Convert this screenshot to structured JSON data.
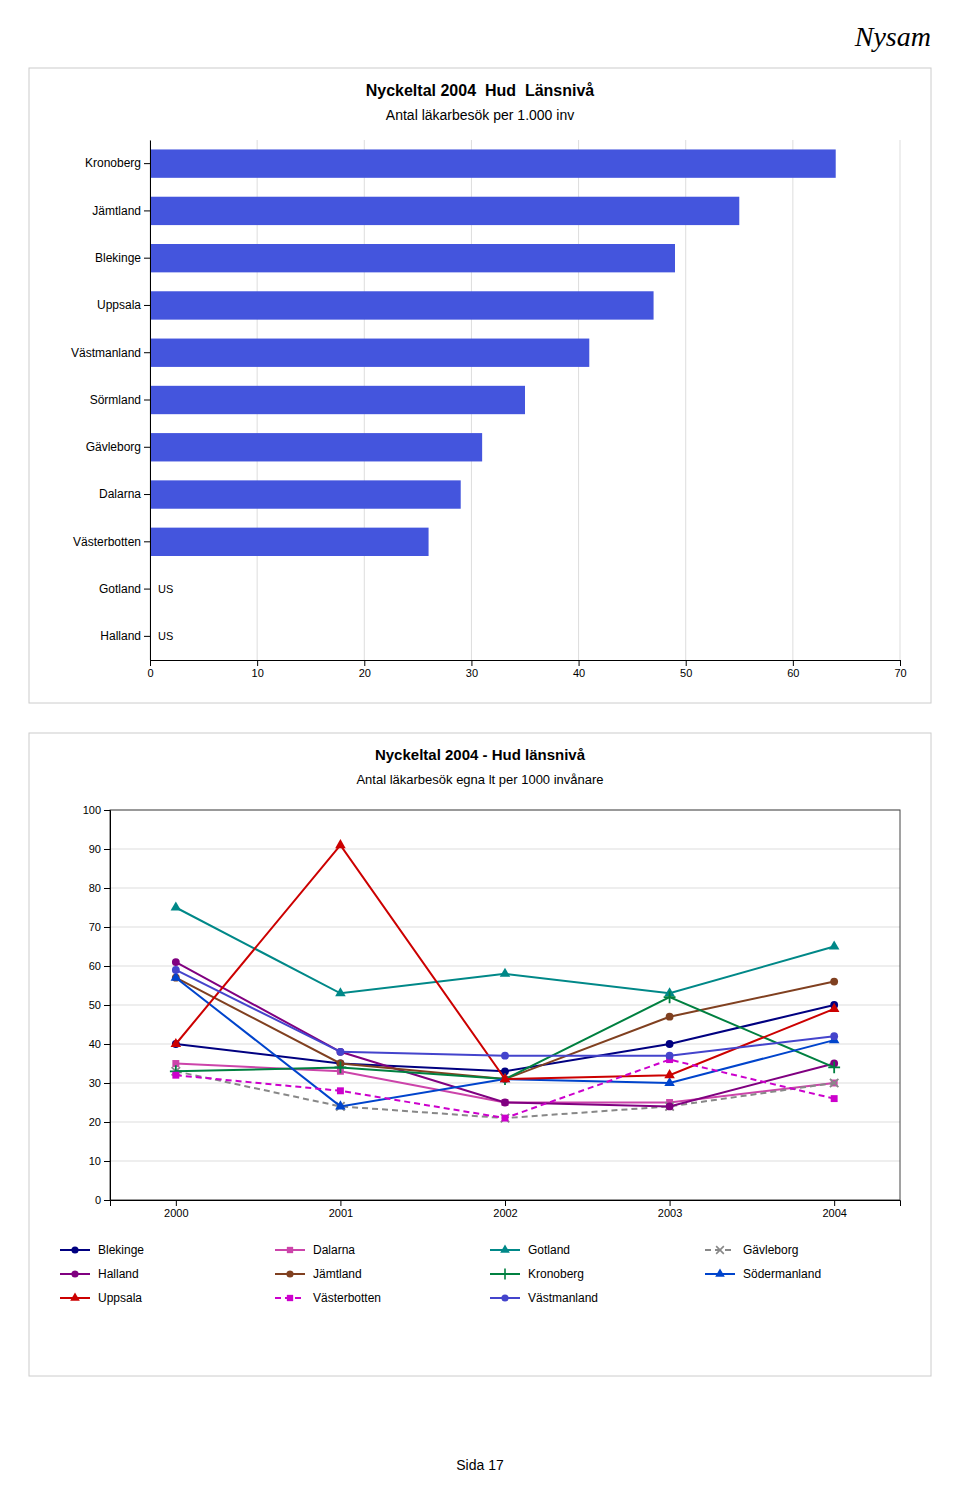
{
  "annotations": [
    "Nysam",
    "Sida 17"
  ],
  "chart_data": [
    {
      "type": "bar",
      "orientation": "horizontal",
      "title": "Nyckeltal 2004  Hud  Länsnivå",
      "subtitle": "Antal läkarbesök per 1.000 inv",
      "categories": [
        "Halland",
        "Gotland",
        "Västerbotten",
        "Dalarna",
        "Gävleborg",
        "Sörmland",
        "Västmanland",
        "Uppsala",
        "Blekinge",
        "Jämtland",
        "Kronoberg"
      ],
      "values": [
        null,
        null,
        26,
        29,
        31,
        35,
        41,
        47,
        49,
        55,
        64
      ],
      "value_labels": [
        "US",
        "US",
        null,
        null,
        null,
        null,
        null,
        null,
        null,
        null,
        null
      ],
      "color": "#4455dd",
      "xlim": [
        0,
        70
      ],
      "xticks": [
        0,
        10,
        20,
        30,
        40,
        50,
        60,
        70
      ],
      "grid": "x"
    },
    {
      "type": "line",
      "title": "Nyckeltal 2004 - Hud länsnivå",
      "subtitle": "Antal läkarbesök egna lt per 1000 invånare",
      "x": [
        2000,
        2001,
        2002,
        2003,
        2004
      ],
      "xlim": [
        1999.6,
        2004.4
      ],
      "xticks": [
        2000,
        2001,
        2002,
        2003,
        2004
      ],
      "ylim": [
        0,
        100
      ],
      "yticks": [
        0,
        10,
        20,
        30,
        40,
        50,
        60,
        70,
        80,
        90,
        100
      ],
      "grid": "y",
      "legend": "bottom",
      "series": [
        {
          "name": "Blekinge",
          "color": "#000080",
          "marker": "circle",
          "line_style": "solid",
          "values": [
            40,
            35,
            33,
            40,
            50
          ]
        },
        {
          "name": "Dalarna",
          "color": "#cc44aa",
          "marker": "square",
          "line_style": "solid",
          "values": [
            35,
            33,
            25,
            25,
            30
          ]
        },
        {
          "name": "Gotland",
          "color": "#008888",
          "marker": "triangle",
          "line_style": "solid",
          "values": [
            75,
            53,
            58,
            53,
            65
          ]
        },
        {
          "name": "Gävleborg",
          "color": "#888888",
          "marker": "x",
          "line_style": "dashed",
          "values": [
            33,
            24,
            21,
            24,
            30
          ]
        },
        {
          "name": "Halland",
          "color": "#800080",
          "marker": "circle",
          "line_style": "solid",
          "values": [
            61,
            38,
            25,
            24,
            35
          ]
        },
        {
          "name": "Jämtland",
          "color": "#804020",
          "marker": "circle",
          "line_style": "solid",
          "values": [
            57,
            35,
            31,
            47,
            56
          ]
        },
        {
          "name": "Kronoberg",
          "color": "#008040",
          "marker": "plus",
          "line_style": "solid",
          "values": [
            33,
            34,
            31,
            52,
            34
          ]
        },
        {
          "name": "Södermanland",
          "color": "#0044cc",
          "marker": "triangle",
          "line_style": "solid",
          "values": [
            57,
            24,
            31,
            30,
            41
          ]
        },
        {
          "name": "Uppsala",
          "color": "#cc0000",
          "marker": "triangle",
          "line_style": "solid",
          "values": [
            40,
            91,
            31,
            32,
            49
          ]
        },
        {
          "name": "Västerbotten",
          "color": "#cc00cc",
          "marker": "square",
          "line_style": "dashed",
          "values": [
            32,
            28,
            21,
            36,
            26
          ]
        },
        {
          "name": "Västmanland",
          "color": "#4444cc",
          "marker": "circle",
          "line_style": "solid",
          "values": [
            59,
            38,
            37,
            37,
            42
          ]
        }
      ]
    }
  ]
}
